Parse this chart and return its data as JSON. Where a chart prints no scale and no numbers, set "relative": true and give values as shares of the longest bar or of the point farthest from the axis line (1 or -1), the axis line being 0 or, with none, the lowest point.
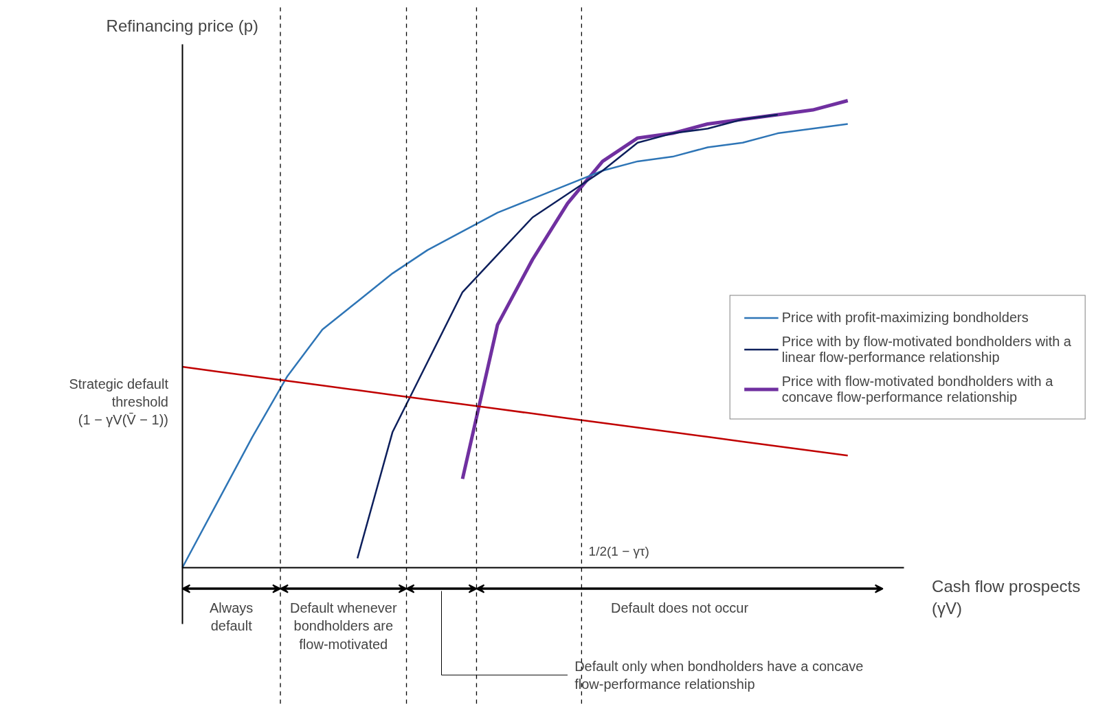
{
  "chart_data": {
    "type": "line",
    "relative": true,
    "ylabel": "Refinancing price (p)",
    "xlabel": "Cash flow prospects (γV)",
    "legend": "right",
    "grid": false,
    "categories": [
      null,
      null,
      null,
      null,
      null,
      null,
      null,
      null,
      null,
      null,
      null,
      null,
      null,
      null,
      null,
      null,
      null,
      null,
      null,
      null
    ],
    "series": [
      {
        "name": "Price with profit-maximizing bondholders",
        "color": "#2e75b6",
        "values": [
          0,
          0.14,
          0.28,
          0.41,
          0.51,
          0.57,
          0.63,
          0.68,
          0.72,
          0.76,
          0.79,
          0.82,
          0.85,
          0.87,
          0.88,
          0.9,
          0.91,
          0.93,
          0.94,
          0.95
        ]
      },
      {
        "name": "Price with by flow-motivated bondholders with a linear flow-performance relationship",
        "color": "#0d1f5c",
        "values": [
          null,
          null,
          null,
          null,
          null,
          0.02,
          0.29,
          0.44,
          0.59,
          0.67,
          0.75,
          0.8,
          0.85,
          0.91,
          0.93,
          0.94,
          0.96,
          0.97,
          null,
          null
        ]
      },
      {
        "name": "Price with flow-motivated bondholders with a concave flow-performance relationship",
        "color": "#7030a0",
        "values": [
          null,
          null,
          null,
          null,
          null,
          null,
          null,
          null,
          0.19,
          0.52,
          0.66,
          0.78,
          0.87,
          0.92,
          0.93,
          0.95,
          0.96,
          0.97,
          0.98,
          1.0
        ]
      },
      {
        "name": "Strategic default threshold (1 − γV(V̄ − 1))",
        "color": "#c00000",
        "values": [
          0.43,
          0.42,
          0.41,
          0.4,
          0.39,
          0.38,
          0.37,
          0.36,
          0.35,
          0.34,
          0.33,
          0.32,
          0.31,
          0.3,
          0.29,
          0.28,
          0.27,
          0.26,
          0.25,
          0.24
        ]
      }
    ],
    "annotations": [
      "Always default",
      "Default whenever bondholders are flow-motivated",
      "Default only when bondholders have a concave flow-performance relationship",
      "Default does not occur",
      "1/2(1 − γτ)"
    ]
  }
}
